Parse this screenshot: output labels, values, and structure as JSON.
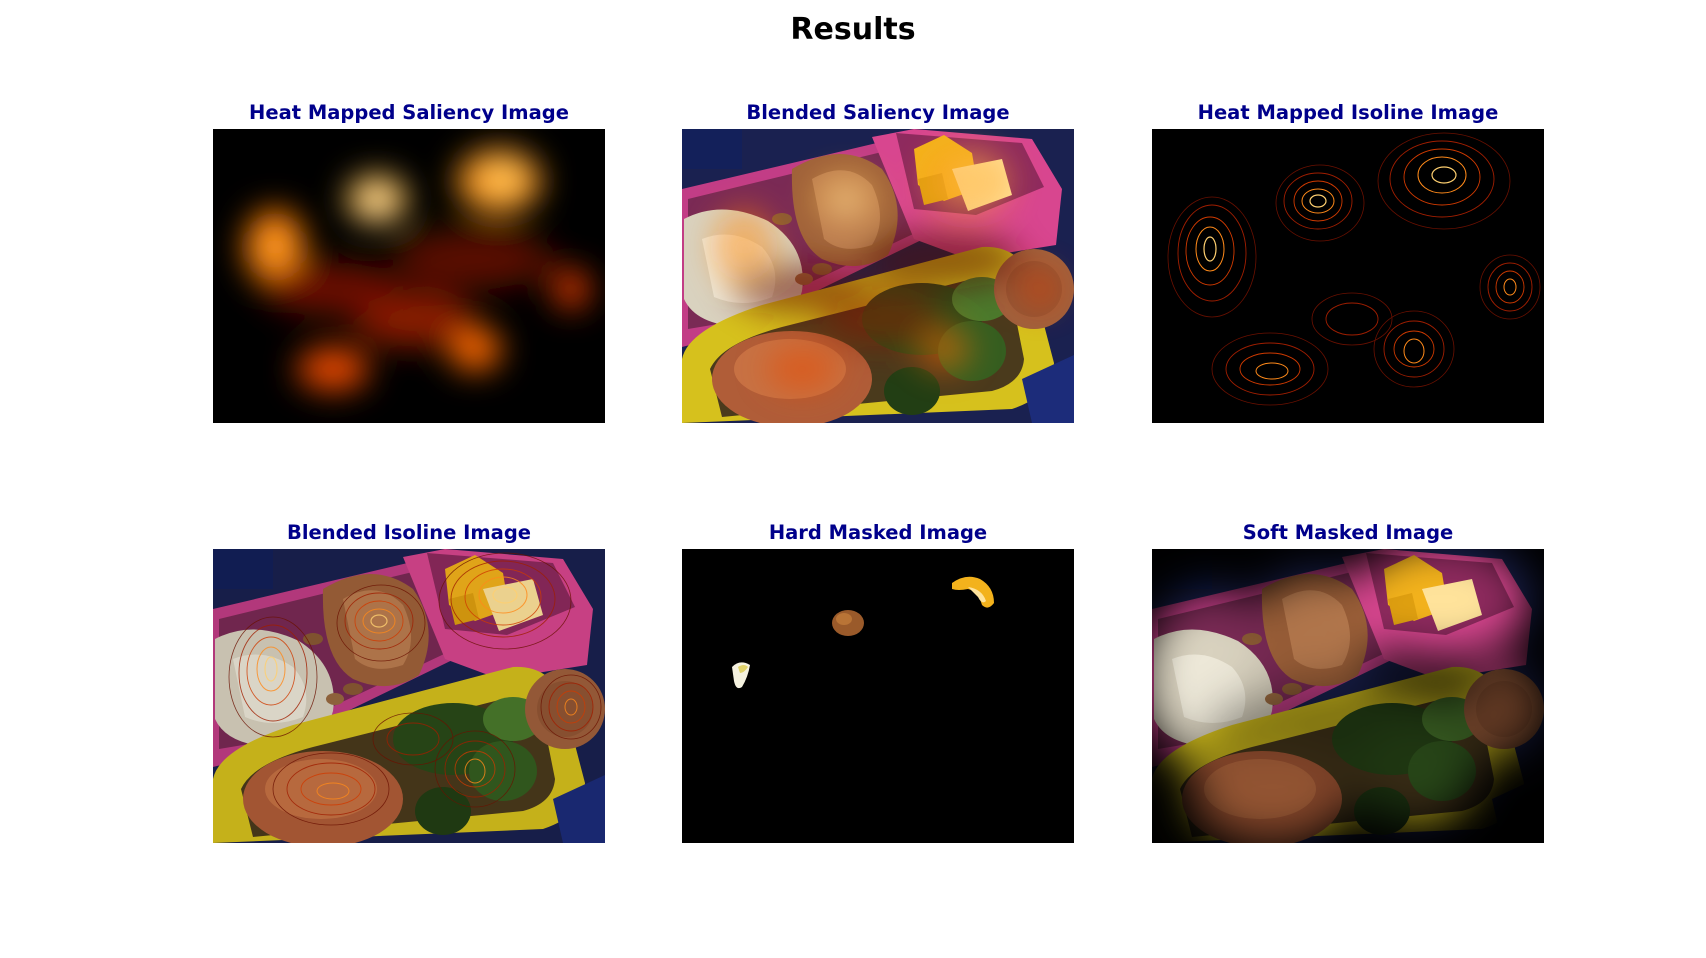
{
  "figure": {
    "title": "Results",
    "title_color": "#000000",
    "panel_title_color": "#00008b"
  },
  "panels": [
    {
      "title": "Heat Mapped Saliency Image"
    },
    {
      "title": "Blended Saliency Image"
    },
    {
      "title": "Heat Mapped Isoline Image"
    },
    {
      "title": "Blended Isoline Image"
    },
    {
      "title": "Hard Masked Image"
    },
    {
      "title": "Soft Masked Image"
    }
  ]
}
